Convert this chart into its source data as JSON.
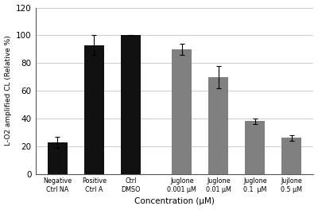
{
  "categories": [
    "Negative\nCtrl NA",
    "Positive\nCtrl A",
    "Ctrl\nDMSO",
    "Juglone\n0.001 μM",
    "Juglone\n0.01 μM",
    "Juglone\n0.1  μM",
    "Jujlone\n0.5 μM"
  ],
  "values": [
    23,
    93,
    100,
    90,
    70,
    38,
    26
  ],
  "errors": [
    4,
    7,
    0,
    4,
    8,
    2,
    2
  ],
  "bar_colors": [
    "#111111",
    "#111111",
    "#111111",
    "#808080",
    "#808080",
    "#808080",
    "#808080"
  ],
  "ylabel": "L-O2 amplified CL (Relative %)",
  "xlabel": "Concentration (μM)",
  "ylim": [
    0,
    120
  ],
  "yticks": [
    0,
    20,
    40,
    60,
    80,
    100,
    120
  ],
  "background_color": "#ffffff",
  "grid_color": "#cccccc",
  "figure_bg": "#ffffff",
  "x_positions": [
    0,
    1,
    2,
    3.4,
    4.4,
    5.4,
    6.4
  ]
}
